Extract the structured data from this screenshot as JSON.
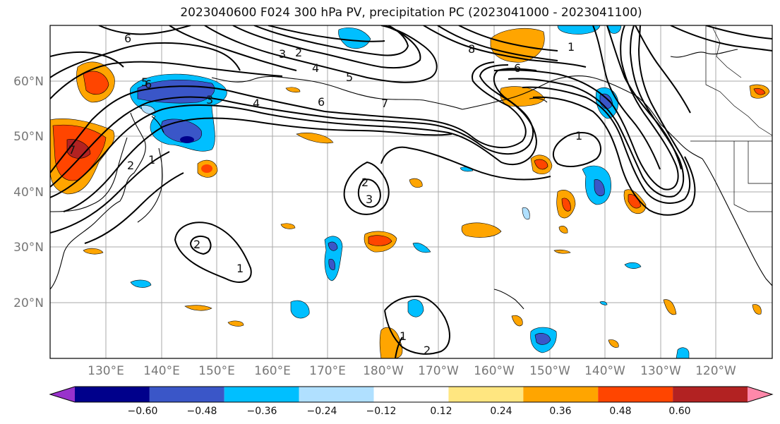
{
  "title": "2023040600 F024 300 hPa PV, precipitation PC (2023041000 - 2023041100)",
  "lat_labels": [
    "60°N",
    "50°N",
    "40°N",
    "30°N",
    "20°N"
  ],
  "lon_labels": [
    "130°E",
    "140°E",
    "150°E",
    "160°E",
    "170°E",
    "180°W",
    "170°W",
    "160°W",
    "150°W",
    "140°W",
    "130°W",
    "120°W"
  ],
  "colorbar": {
    "colors": [
      "#9932cc",
      "#00008b",
      "#3a56c8",
      "#00bfff",
      "#b0e0ff",
      "#ffffff",
      "#ffe680",
      "#ffa500",
      "#ff4500",
      "#b22222",
      "#ff88aa"
    ],
    "tick_labels": [
      "−0.60",
      "−0.48",
      "−0.36",
      "−0.24",
      "−0.12",
      "0.12",
      "0.24",
      "0.36",
      "0.48",
      "0.60"
    ]
  },
  "contour_labels": [
    "6",
    "3",
    "2",
    "4",
    "5",
    "6",
    "7",
    "8",
    "6",
    "5",
    "6",
    "3",
    "4",
    "7",
    "2",
    "1",
    "2",
    "3",
    "2",
    "1",
    "1",
    "2",
    "1",
    "1"
  ]
}
